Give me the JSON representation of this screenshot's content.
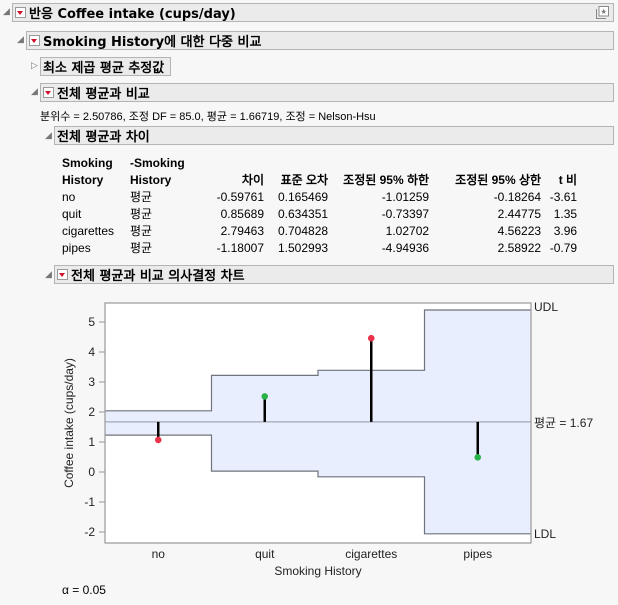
{
  "sections": {
    "response": {
      "title": "반응 Coffee intake (cups/day)"
    },
    "multiple_comparisons": {
      "title": "Smoking History에 대한 다중 비교"
    },
    "lsmeans": {
      "title": "최소 제곱 평균 추정값"
    },
    "compare_overall": {
      "title": "전체 평균과 비교"
    },
    "stats_line": "분위수 = 2.50786, 조정 DF = 85.0, 평균 = 1.66719, 조정 = Nelson-Hsu",
    "diff_table_section": {
      "title": "전체 평균과 차이"
    },
    "decision_chart_section": {
      "title": "전체 평균과 비교 의사결정 차트"
    }
  },
  "table": {
    "headers": {
      "col1_line1": "Smoking",
      "col1_line2": "History",
      "col2_line1": "-Smoking",
      "col2_line2": "History",
      "diff": "차이",
      "stderr": "표준 오차",
      "lower": "조정된 95% 하한",
      "upper": "조정된 95% 상한",
      "tratio": "t 비"
    },
    "rows": [
      {
        "level": "no",
        "vs": "평균",
        "diff": "-0.59761",
        "stderr": "0.165469",
        "lower": "-1.01259",
        "upper": "-0.18264",
        "t": "-3.61"
      },
      {
        "level": "quit",
        "vs": "평균",
        "diff": "0.85689",
        "stderr": "0.634351",
        "lower": "-0.73397",
        "upper": "2.44775",
        "t": "1.35"
      },
      {
        "level": "cigarettes",
        "vs": "평균",
        "diff": "2.79463",
        "stderr": "0.704828",
        "lower": "1.02702",
        "upper": "4.56223",
        "t": "3.96"
      },
      {
        "level": "pipes",
        "vs": "평균",
        "diff": "-1.18007",
        "stderr": "1.502993",
        "lower": "-4.94936",
        "upper": "2.58922",
        "t": "-0.79"
      }
    ]
  },
  "chart_data": {
    "type": "line",
    "title": "전체 평균과 비교 의사결정 차트",
    "xlabel": "Smoking History",
    "ylabel": "Coffee intake (cups/day)",
    "categories": [
      "no",
      "quit",
      "cigarettes",
      "pipes"
    ],
    "means": [
      1.07,
      2.52,
      4.46,
      0.49
    ],
    "udl": [
      2.04,
      3.22,
      3.39,
      5.4
    ],
    "ldl": [
      1.23,
      0.03,
      -0.16,
      -2.06
    ],
    "overall_mean": 1.67,
    "point_colors": [
      "#e8334a",
      "#2ab24a",
      "#e8334a",
      "#2ab24a"
    ],
    "yticks": [
      5,
      4,
      3,
      2,
      1,
      0,
      -1,
      -2
    ],
    "ylim": [
      -2.35,
      5.6
    ],
    "udl_label": "UDL",
    "ldl_label": "LDL",
    "mean_label": "평균 = 1.67",
    "alpha_label": "α = 0.05",
    "grid": false
  },
  "colors": {
    "band_fill": "#e8eefd",
    "band_stroke": "#6e737c",
    "mean_line": "#a3a8b5"
  }
}
